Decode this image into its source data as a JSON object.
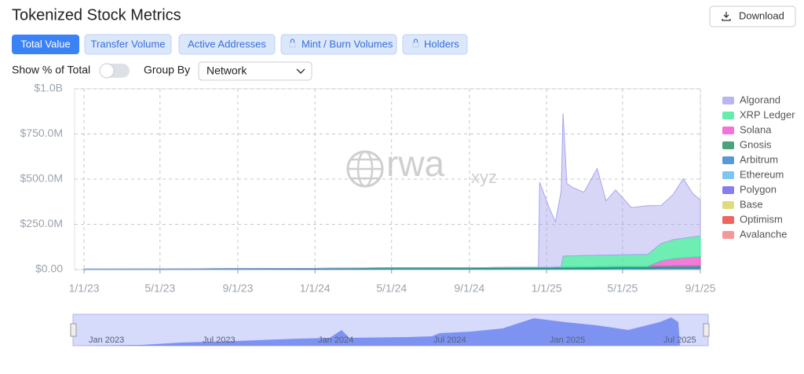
{
  "header": {
    "title": "Tokenized Stock Metrics",
    "download": "Download"
  },
  "tabs": [
    "Total Value",
    "Transfer Volume",
    "Active Addresses",
    "Mint / Burn Volumes",
    "Holders"
  ],
  "controls": {
    "toggle_label": "Show % of Total",
    "group_label": "Group By",
    "group_value": "Network"
  },
  "watermark": {
    "main": "rwa",
    "suffix": "xyz"
  },
  "navigator": {
    "labels": [
      "Jan 2023",
      "Jul 2023",
      "Jan 2024",
      "Jul 2024",
      "Jan 2025",
      "Jul 2025"
    ]
  },
  "chart_data": {
    "type": "stacked-area",
    "legend": "right",
    "grid": true,
    "xlim": [
      "2022-12-17",
      "2025-09-01"
    ],
    "xticks": [
      {
        "value": "2023-01-01",
        "label": "1/1/23"
      },
      {
        "value": "2023-05-01",
        "label": "5/1/23"
      },
      {
        "value": "2023-09-01",
        "label": "9/1/23"
      },
      {
        "value": "2024-01-01",
        "label": "1/1/24"
      },
      {
        "value": "2024-05-01",
        "label": "5/1/24"
      },
      {
        "value": "2024-09-01",
        "label": "9/1/24"
      },
      {
        "value": "2025-01-01",
        "label": "1/1/25"
      },
      {
        "value": "2025-05-01",
        "label": "5/1/25"
      },
      {
        "value": "2025-09-01",
        "label": "9/1/25"
      }
    ],
    "ylim": [
      0,
      1000000000
    ],
    "yticks": [
      {
        "value": 0,
        "label": "$0.00"
      },
      {
        "value": 250000000,
        "label": "$250.0M"
      },
      {
        "value": 500000000,
        "label": "$500.0M"
      },
      {
        "value": 750000000,
        "label": "$750.0M"
      },
      {
        "value": 1000000000,
        "label": "$1.0B"
      }
    ],
    "x": [
      "2023-01-01",
      "2023-05-01",
      "2023-09-01",
      "2024-01-01",
      "2024-05-01",
      "2024-09-01",
      "2024-12-19",
      "2024-12-21",
      "2025-01-05",
      "2025-01-15",
      "2025-01-24",
      "2025-01-27",
      "2025-02-02",
      "2025-02-10",
      "2025-03-01",
      "2025-03-22",
      "2025-04-05",
      "2025-04-20",
      "2025-05-15",
      "2025-06-10",
      "2025-07-01",
      "2025-07-20",
      "2025-08-05",
      "2025-08-20",
      "2025-09-01"
    ],
    "series": [
      {
        "name": "Algorand",
        "color": "#a9a4ee",
        "values": [
          0,
          0,
          0,
          0,
          0,
          0,
          0,
          470000000,
          330000000,
          250000000,
          420000000,
          790000000,
          400000000,
          380000000,
          350000000,
          480000000,
          300000000,
          360000000,
          260000000,
          270000000,
          210000000,
          250000000,
          330000000,
          240000000,
          200000000
        ]
      },
      {
        "name": "XRP Ledger",
        "color": "#3ee89a",
        "values": [
          0,
          0,
          0,
          0,
          0,
          0,
          0,
          0,
          0,
          0,
          0,
          60000000,
          62000000,
          62000000,
          63000000,
          63000000,
          64000000,
          64000000,
          65000000,
          66000000,
          95000000,
          105000000,
          108000000,
          112000000,
          115000000
        ]
      },
      {
        "name": "Solana",
        "color": "#ee4fcf",
        "values": [
          0,
          0,
          0,
          0,
          0,
          0,
          0,
          0,
          0,
          0,
          0,
          0,
          0,
          0,
          0,
          0,
          0,
          0,
          0,
          0,
          30000000,
          40000000,
          45000000,
          48000000,
          50000000
        ]
      },
      {
        "name": "Gnosis",
        "color": "#1f8c5a",
        "values": [
          1000000,
          2000000,
          3000000,
          4000000,
          5000000,
          6000000,
          7000000,
          7000000,
          7000000,
          8000000,
          8000000,
          8000000,
          8000000,
          8000000,
          9000000,
          9000000,
          9000000,
          9000000,
          10000000,
          10000000,
          10000000,
          11000000,
          11000000,
          11000000,
          12000000
        ]
      },
      {
        "name": "Arbitrum",
        "color": "#2e7ec9",
        "values": [
          0,
          0,
          0,
          0,
          1000000,
          1000000,
          1000000,
          1000000,
          1000000,
          1000000,
          1000000,
          1000000,
          1000000,
          1000000,
          1000000,
          2000000,
          2000000,
          2000000,
          2000000,
          2000000,
          2000000,
          2000000,
          2000000,
          2000000,
          2000000
        ]
      },
      {
        "name": "Ethereum",
        "color": "#5bb8f0",
        "values": [
          1000000,
          1000000,
          2000000,
          2000000,
          3000000,
          3000000,
          4000000,
          4000000,
          4000000,
          4000000,
          4000000,
          4000000,
          4000000,
          4000000,
          4000000,
          4000000,
          4000000,
          5000000,
          5000000,
          5000000,
          5000000,
          5000000,
          5000000,
          5000000,
          5000000
        ]
      },
      {
        "name": "Polygon",
        "color": "#6a5ce8",
        "values": [
          500000,
          500000,
          500000,
          500000,
          500000,
          500000,
          500000,
          500000,
          500000,
          500000,
          500000,
          500000,
          500000,
          500000,
          500000,
          500000,
          500000,
          500000,
          500000,
          500000,
          500000,
          500000,
          500000,
          500000,
          500000
        ]
      },
      {
        "name": "Base",
        "color": "#d6d55e",
        "values": [
          0,
          0,
          0,
          0,
          0,
          0,
          0,
          0,
          0,
          0,
          0,
          0,
          0,
          0,
          0,
          0,
          0,
          0,
          0,
          0,
          300000,
          300000,
          300000,
          300000,
          300000
        ]
      },
      {
        "name": "Optimism",
        "color": "#e8403a",
        "values": [
          0,
          0,
          0,
          0,
          0,
          0,
          0,
          0,
          0,
          0,
          0,
          0,
          0,
          0,
          0,
          0,
          0,
          0,
          0,
          0,
          0,
          0,
          100000,
          100000,
          100000
        ]
      },
      {
        "name": "Avalanche",
        "color": "#f08080",
        "values": [
          0,
          0,
          0,
          0,
          0,
          0,
          0,
          0,
          0,
          0,
          0,
          0,
          0,
          0,
          0,
          0,
          0,
          0,
          0,
          0,
          1000000,
          1000000,
          1000000,
          1000000,
          1000000
        ]
      }
    ]
  }
}
